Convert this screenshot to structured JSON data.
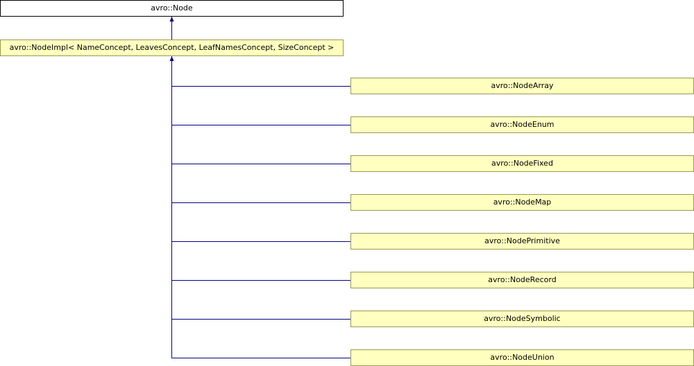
{
  "diagram": {
    "base_class": "avro::Node",
    "impl_class": "avro::NodeImpl< NameConcept, LeavesConcept, LeafNamesConcept, SizeConcept >",
    "derived_classes": [
      "avro::NodeArray",
      "avro::NodeEnum",
      "avro::NodeFixed",
      "avro::NodeMap",
      "avro::NodePrimitive",
      "avro::NodeRecord",
      "avro::NodeSymbolic",
      "avro::NodeUnion"
    ],
    "colors": {
      "edge": "#000080",
      "class_fill": "#ffffc0",
      "base_fill": "#ffffff"
    }
  }
}
